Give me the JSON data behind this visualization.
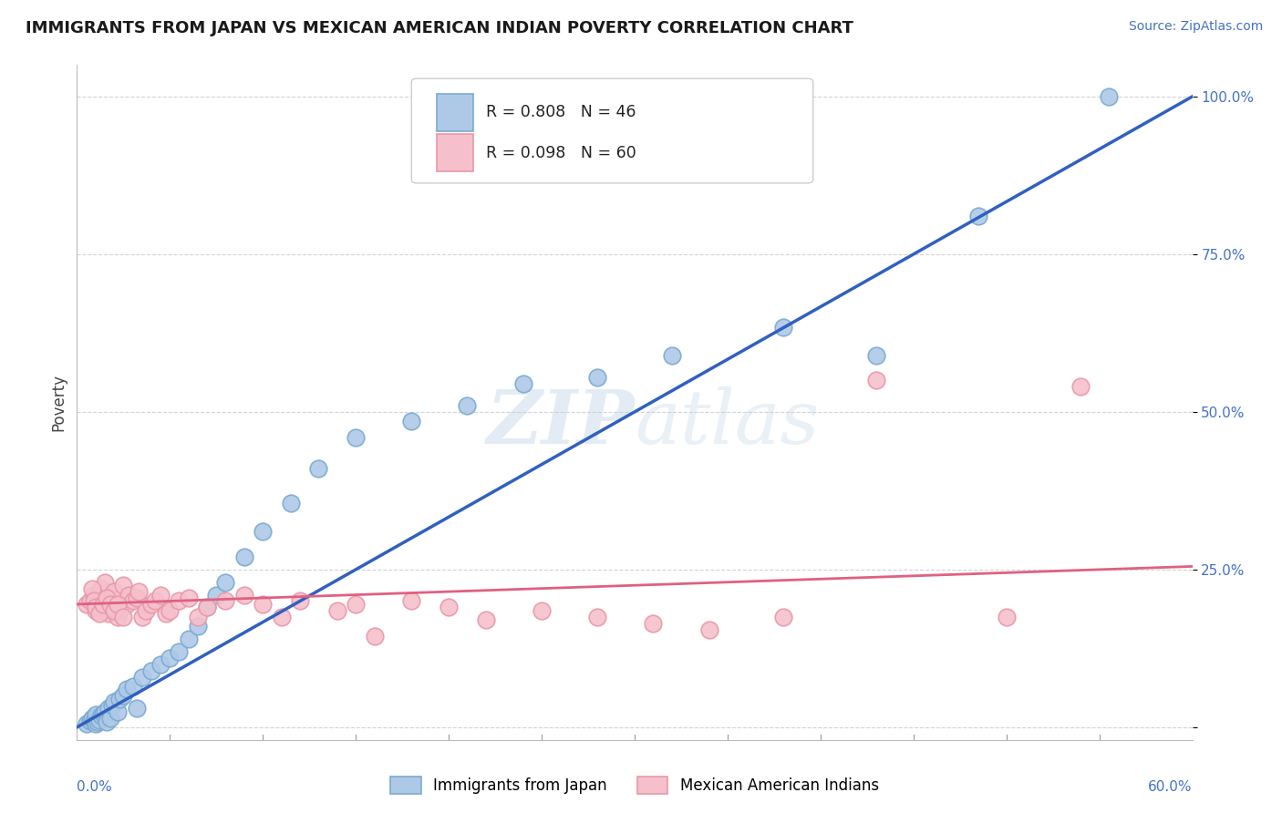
{
  "title": "IMMIGRANTS FROM JAPAN VS MEXICAN AMERICAN INDIAN POVERTY CORRELATION CHART",
  "source": "Source: ZipAtlas.com",
  "ylabel": "Poverty",
  "y_ticks": [
    0.0,
    0.25,
    0.5,
    0.75,
    1.0
  ],
  "y_tick_labels": [
    "",
    "25.0%",
    "50.0%",
    "75.0%",
    "100.0%"
  ],
  "legend1_label": "R = 0.808   N = 46",
  "legend2_label": "R = 0.098   N = 60",
  "legend_bottom1": "Immigrants from Japan",
  "legend_bottom2": "Mexican American Indians",
  "blue_line_color": "#3060c0",
  "blue_dot_fill": "#aec9e8",
  "blue_dot_edge": "#7aaad0",
  "pink_line_color": "#e06080",
  "pink_dot_fill": "#f5c0cc",
  "pink_dot_edge": "#e898a8",
  "legend_blue_fill": "#aec9e8",
  "legend_blue_edge": "#7aaad0",
  "legend_pink_fill": "#f5c0cc",
  "legend_pink_edge": "#e898a8",
  "xlim": [
    0.0,
    0.6
  ],
  "ylim": [
    -0.02,
    1.05
  ],
  "blue_line_x0": 0.0,
  "blue_line_y0": 0.0,
  "blue_line_x1": 0.6,
  "blue_line_y1": 1.0,
  "pink_line_x0": 0.0,
  "pink_line_y0": 0.195,
  "pink_line_x1": 0.6,
  "pink_line_y1": 0.255,
  "blue_x": [
    0.005,
    0.007,
    0.008,
    0.009,
    0.01,
    0.01,
    0.011,
    0.012,
    0.013,
    0.014,
    0.015,
    0.016,
    0.017,
    0.018,
    0.019,
    0.02,
    0.022,
    0.023,
    0.025,
    0.027,
    0.03,
    0.032,
    0.035,
    0.04,
    0.045,
    0.05,
    0.055,
    0.06,
    0.065,
    0.07,
    0.075,
    0.08,
    0.09,
    0.1,
    0.115,
    0.13,
    0.15,
    0.18,
    0.21,
    0.24,
    0.28,
    0.32,
    0.38,
    0.43,
    0.485,
    0.555
  ],
  "blue_y": [
    0.005,
    0.01,
    0.015,
    0.01,
    0.02,
    0.005,
    0.008,
    0.012,
    0.018,
    0.022,
    0.025,
    0.008,
    0.03,
    0.015,
    0.035,
    0.04,
    0.025,
    0.045,
    0.05,
    0.06,
    0.065,
    0.03,
    0.08,
    0.09,
    0.1,
    0.11,
    0.12,
    0.14,
    0.16,
    0.19,
    0.21,
    0.23,
    0.27,
    0.31,
    0.355,
    0.41,
    0.46,
    0.485,
    0.51,
    0.545,
    0.555,
    0.59,
    0.635,
    0.59,
    0.81,
    1.0
  ],
  "pink_x": [
    0.005,
    0.007,
    0.009,
    0.01,
    0.012,
    0.013,
    0.015,
    0.016,
    0.017,
    0.018,
    0.019,
    0.02,
    0.022,
    0.023,
    0.025,
    0.027,
    0.028,
    0.03,
    0.032,
    0.033,
    0.035,
    0.037,
    0.04,
    0.042,
    0.045,
    0.048,
    0.05,
    0.055,
    0.06,
    0.065,
    0.07,
    0.08,
    0.09,
    0.1,
    0.11,
    0.12,
    0.14,
    0.15,
    0.16,
    0.18,
    0.2,
    0.22,
    0.25,
    0.28,
    0.31,
    0.34,
    0.38,
    0.43,
    0.5,
    0.54,
    0.008,
    0.009,
    0.01,
    0.012,
    0.014,
    0.016,
    0.018,
    0.02,
    0.022,
    0.025
  ],
  "pink_y": [
    0.195,
    0.2,
    0.21,
    0.185,
    0.215,
    0.22,
    0.23,
    0.2,
    0.18,
    0.19,
    0.205,
    0.215,
    0.175,
    0.185,
    0.225,
    0.195,
    0.21,
    0.2,
    0.205,
    0.215,
    0.175,
    0.185,
    0.195,
    0.2,
    0.21,
    0.18,
    0.185,
    0.2,
    0.205,
    0.175,
    0.19,
    0.2,
    0.21,
    0.195,
    0.175,
    0.2,
    0.185,
    0.195,
    0.145,
    0.2,
    0.19,
    0.17,
    0.185,
    0.175,
    0.165,
    0.155,
    0.175,
    0.55,
    0.175,
    0.54,
    0.22,
    0.2,
    0.19,
    0.18,
    0.195,
    0.205,
    0.195,
    0.185,
    0.195,
    0.175
  ],
  "background_color": "#ffffff",
  "grid_color": "#c8c8c8"
}
